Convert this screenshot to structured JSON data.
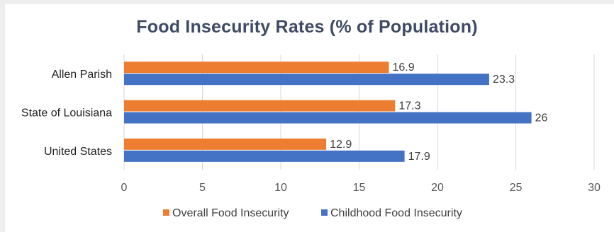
{
  "chart_data": {
    "type": "bar",
    "orientation": "horizontal",
    "title": "Food Insecurity Rates (% of Population)",
    "categories": [
      "Allen Parish",
      "State of Louisiana",
      "United States"
    ],
    "series": [
      {
        "name": "Overall Food Insecurity",
        "color": "#ed7d31",
        "values": [
          16.9,
          17.3,
          12.9
        ],
        "labels": [
          "16.9",
          "17.3",
          "12.9"
        ]
      },
      {
        "name": "Childhood Food Insecurity",
        "color": "#4472c4",
        "values": [
          23.3,
          26,
          17.9
        ],
        "labels": [
          "23.3",
          "26",
          "17.9"
        ]
      }
    ],
    "xlim": [
      0,
      30
    ],
    "xticks": [
      0,
      5,
      10,
      15,
      20,
      25,
      30
    ],
    "grid": true,
    "legend": "bottom"
  }
}
